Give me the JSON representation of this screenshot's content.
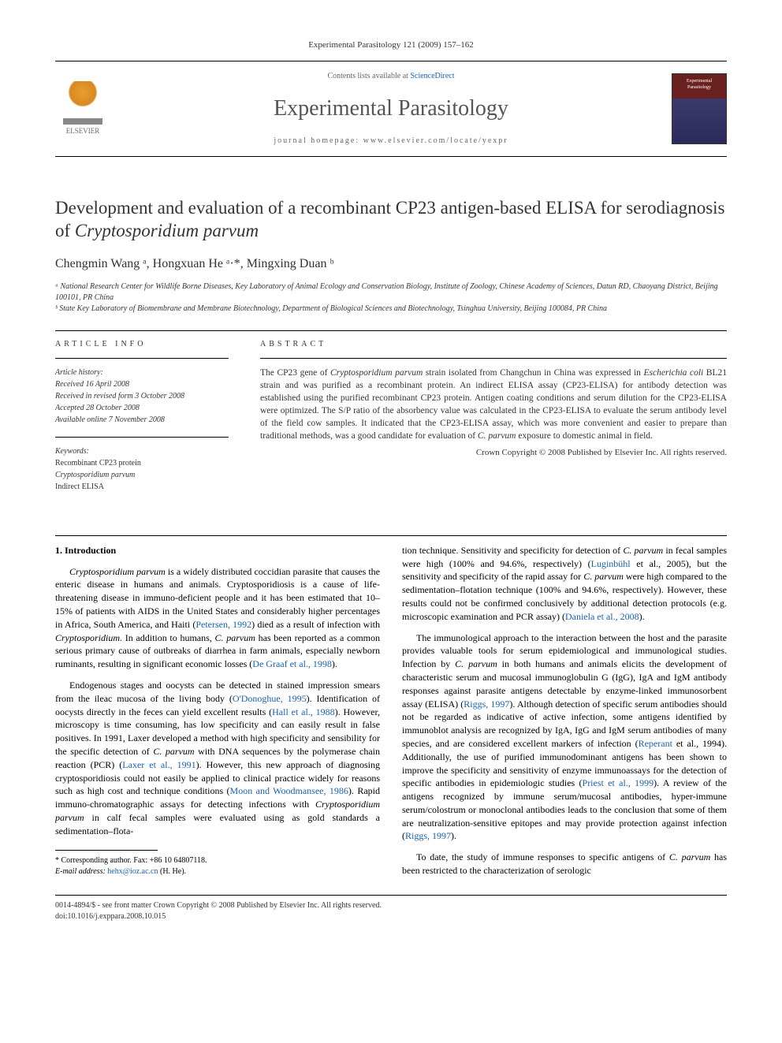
{
  "journal_ref": "Experimental Parasitology 121 (2009) 157–162",
  "header": {
    "contents_prefix": "Contents lists available at ",
    "contents_link": "ScienceDirect",
    "journal_name": "Experimental Parasitology",
    "homepage_prefix": "journal homepage: ",
    "homepage_url": "www.elsevier.com/locate/yexpr",
    "publisher_name": "ELSEVIER"
  },
  "title": {
    "pre": "Development and evaluation of a recombinant CP23 antigen-based ELISA for serodiagnosis of ",
    "italic": "Cryptosporidium parvum"
  },
  "authors_line": "Chengmin Wang ᵃ, Hongxuan He ᵃ·*, Mingxing Duan ᵇ",
  "affiliations": {
    "a": "ᵃ National Research Center for Wildlife Borne Diseases, Key Laboratory of Animal Ecology and Conservation Biology, Institute of Zoology, Chinese Academy of Sciences, Datun RD, Chaoyang District, Beijing 100101, PR China",
    "b": "ᵇ State Key Laboratory of Biomembrane and Membrane Biotechnology, Department of Biological Sciences and Biotechnology, Tsinghua University, Beijing 100084, PR China"
  },
  "info": {
    "heading": "ARTICLE INFO",
    "history_label": "Article history:",
    "received": "Received 16 April 2008",
    "revised": "Received in revised form 3 October 2008",
    "accepted": "Accepted 28 October 2008",
    "online": "Available online 7 November 2008",
    "keywords_label": "Keywords:",
    "keywords": [
      "Recombinant CP23 protein",
      "Cryptosporidium parvum",
      "Indirect ELISA"
    ]
  },
  "abstract": {
    "heading": "ABSTRACT",
    "text_parts": [
      "The CP23 gene of ",
      "Cryptosporidium parvum",
      " strain isolated from Changchun in China was expressed in ",
      "Escherichia coli",
      " BL21 strain and was purified as a recombinant protein. An indirect ELISA assay (CP23-ELISA) for antibody detection was established using the purified recombinant CP23 protein. Antigen coating conditions and serum dilution for the CP23-ELISA were optimized. The S/P ratio of the absorbency value was calculated in the CP23-ELISA to evaluate the serum antibody level of the field cow samples. It indicated that the CP23-ELISA assay, which was more convenient and easier to prepare than traditional methods, was a good candidate for evaluation of ",
      "C. parvum",
      " exposure to domestic animal in field."
    ],
    "copyright": "Crown Copyright © 2008 Published by Elsevier Inc. All rights reserved."
  },
  "section1_heading": "1. Introduction",
  "body": {
    "col1": {
      "p1": {
        "parts": [
          {
            "t": "italic",
            "v": "Cryptosporidium parvum"
          },
          {
            "t": "text",
            "v": " is a widely distributed coccidian parasite that causes the enteric disease in humans and animals. Cryptosporidiosis is a cause of life-threatening disease in immuno-deficient people and it has been estimated that 10–15% of patients with AIDS in the United States and considerably higher percentages in Africa, South America, and Haiti ("
          },
          {
            "t": "link",
            "v": "Petersen, 1992"
          },
          {
            "t": "text",
            "v": ") died as a result of infection with "
          },
          {
            "t": "italic",
            "v": "Cryptosporidium"
          },
          {
            "t": "text",
            "v": ". In addition to humans, "
          },
          {
            "t": "italic",
            "v": "C. parvum"
          },
          {
            "t": "text",
            "v": " has been reported as a common serious primary cause of outbreaks of diarrhea in farm animals, especially newborn ruminants, resulting in significant economic losses ("
          },
          {
            "t": "link",
            "v": "De Graaf et al., 1998"
          },
          {
            "t": "text",
            "v": ")."
          }
        ]
      },
      "p2": {
        "parts": [
          {
            "t": "text",
            "v": "Endogenous stages and oocysts can be detected in stained impression smears from the ileac mucosa of the living body ("
          },
          {
            "t": "link",
            "v": "O'Donoghue, 1995"
          },
          {
            "t": "text",
            "v": "). Identification of oocysts directly in the feces can yield excellent results ("
          },
          {
            "t": "link",
            "v": "Hall et al., 1988"
          },
          {
            "t": "text",
            "v": "). However, microscopy is time consuming, has low specificity and can easily result in false positives. In 1991, Laxer developed a method with high specificity and sensibility for the specific detection of "
          },
          {
            "t": "italic",
            "v": "C. parvum"
          },
          {
            "t": "text",
            "v": " with DNA sequences by the polymerase chain reaction (PCR) ("
          },
          {
            "t": "link",
            "v": "Laxer et al., 1991"
          },
          {
            "t": "text",
            "v": "). However, this new approach of diagnosing cryptosporidiosis could not easily be applied to clinical practice widely for reasons such as high cost and technique conditions ("
          },
          {
            "t": "link",
            "v": "Moon and Woodmansee, 1986"
          },
          {
            "t": "text",
            "v": "). Rapid immuno-chromatographic assays for detecting infections with "
          },
          {
            "t": "italic",
            "v": "Cryptosporidium parvum"
          },
          {
            "t": "text",
            "v": " in calf fecal samples were evaluated using as gold standards a sedimentation–flota-"
          }
        ]
      }
    },
    "col2": {
      "p1": {
        "parts": [
          {
            "t": "text",
            "v": "tion technique. Sensitivity and specificity for detection of "
          },
          {
            "t": "italic",
            "v": "C. parvum"
          },
          {
            "t": "text",
            "v": " in fecal samples were high (100% and 94.6%, respectively) ("
          },
          {
            "t": "link",
            "v": "Luginbühl"
          },
          {
            "t": "text",
            "v": " et al., 2005), but the sensitivity and specificity of the rapid assay for "
          },
          {
            "t": "italic",
            "v": "C. parvum"
          },
          {
            "t": "text",
            "v": " were high compared to the sedimentation–flotation technique (100% and 94.6%, respectively). However, these results could not be confirmed conclusively by additional detection protocols (e.g. microscopic examination and PCR assay) ("
          },
          {
            "t": "link",
            "v": "Daniela et al., 2008"
          },
          {
            "t": "text",
            "v": ")."
          }
        ]
      },
      "p2": {
        "parts": [
          {
            "t": "text",
            "v": "The immunological approach to the interaction between the host and the parasite provides valuable tools for serum epidemiological and immunological studies. Infection by "
          },
          {
            "t": "italic",
            "v": "C. parvum"
          },
          {
            "t": "text",
            "v": " in both humans and animals elicits the development of characteristic serum and mucosal immunoglobulin G (IgG), IgA and IgM antibody responses against parasite antigens detectable by enzyme-linked immunosorbent assay (ELISA) ("
          },
          {
            "t": "link",
            "v": "Riggs, 1997"
          },
          {
            "t": "text",
            "v": "). Although detection of specific serum antibodies should not be regarded as indicative of active infection, some antigens identified by immunoblot analysis are recognized by IgA, IgG and IgM serum antibodies of many species, and are considered excellent markers of infection ("
          },
          {
            "t": "link",
            "v": "Reperant"
          },
          {
            "t": "text",
            "v": " et al., 1994). Additionally, the use of purified immunodominant antigens has been shown to improve the specificity and sensitivity of enzyme immunoassays for the detection of specific antibodies in epidemiologic studies ("
          },
          {
            "t": "link",
            "v": "Priest et al., 1999"
          },
          {
            "t": "text",
            "v": "). A review of the antigens recognized by immune serum/mucosal antibodies, hyper-immune serum/colostrum or monoclonal antibodies leads to the conclusion that some of them are neutralization-sensitive epitopes and may provide protection against infection ("
          },
          {
            "t": "link",
            "v": "Riggs, 1997"
          },
          {
            "t": "text",
            "v": ")."
          }
        ]
      },
      "p3": {
        "parts": [
          {
            "t": "text",
            "v": "To date, the study of immune responses to specific antigens of "
          },
          {
            "t": "italic",
            "v": "C. parvum"
          },
          {
            "t": "text",
            "v": " has been restricted to the characterization of serologic"
          }
        ]
      }
    }
  },
  "footnote": {
    "corresponding": "* Corresponding author. Fax: +86 10 64807118.",
    "email_label": "E-mail address: ",
    "email": "hehx@ioz.ac.cn",
    "email_suffix": " (H. He)."
  },
  "bottom": {
    "line1": "0014-4894/$ - see front matter Crown Copyright © 2008 Published by Elsevier Inc. All rights reserved.",
    "line2": "doi:10.1016/j.exppara.2008.10.015"
  },
  "colors": {
    "link": "#1861b3",
    "text": "#333333",
    "elsevier_orange": "#e8a030",
    "cover_red": "#6b2020",
    "cover_blue": "#2a2a5b"
  }
}
